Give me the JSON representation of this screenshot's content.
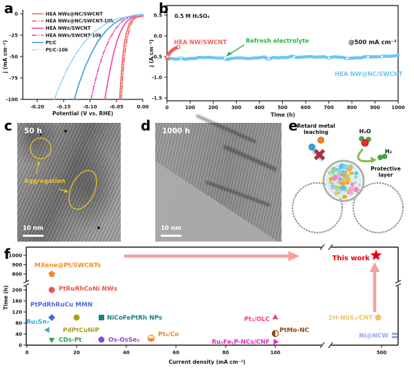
{
  "figure_title": "HEA NWs@NC/SWCNT HER stability figure",
  "panels": {
    "a": "a",
    "b": "b",
    "c": "c",
    "d": "d",
    "e": "e",
    "f": "f"
  },
  "colors": {
    "red": "#F2605C",
    "pink": "#F049A5",
    "blue": "#3FA0DC",
    "light_blue": "#93D2F4",
    "cyan_trace": "#6EC6F2",
    "green_annot": "#2DB34A",
    "arrow_pink": "#F5A09E",
    "star_red": "#E8000B",
    "yellow_annot": "#E6C229",
    "axis": "#1a1a1a"
  },
  "panel_c": {
    "time_label": "50 h",
    "annotation": "Aggregation",
    "scale_bar": "10 nm"
  },
  "panel_d": {
    "time_label": "1000 h",
    "scale_bar": "10 nm"
  },
  "panel_e": {
    "retard": "Retard metal leaching",
    "h2o": "H₂O",
    "h2": "H₂",
    "protective": "Protective layer",
    "particle_palette": [
      "#F4A7D3",
      "#45C8F0",
      "#F5C832",
      "#8FD98F",
      "#F5A623",
      "#BDE26B",
      "#F781C0",
      "#7FD4E8"
    ]
  },
  "chart_data": [
    {
      "id": "a",
      "type": "line",
      "xlabel": "Potential (V vs. RHE)",
      "ylabel": "j (mA cm⁻²)",
      "xlim": [
        -0.235,
        0.0
      ],
      "ylim": [
        -100,
        2
      ],
      "xticks": [
        -0.2,
        -0.15,
        -0.1,
        -0.05,
        0.0
      ],
      "xtick_labels": [
        "-0.20",
        "-0.15",
        "-0.10",
        "-0.05",
        "0.00"
      ],
      "yticks": [
        0,
        -25,
        -50,
        -75,
        -100
      ],
      "legend_position": "upper-left",
      "series": [
        {
          "name": "HEA NWs@NC/SWCNT",
          "color": "#F2605C",
          "dash": null,
          "points": [
            [
              -0.044,
              -100
            ],
            [
              -0.042,
              -82
            ],
            [
              -0.04,
              -65
            ],
            [
              -0.038,
              -50
            ],
            [
              -0.035,
              -35
            ],
            [
              -0.031,
              -22
            ],
            [
              -0.026,
              -12
            ],
            [
              -0.02,
              -6
            ],
            [
              -0.012,
              -3
            ],
            [
              0,
              -2
            ]
          ]
        },
        {
          "name": "HEA NWs@NC/SWCNT-10k",
          "color": "#F2605C",
          "dash": "7 2.5 1.5 2.5",
          "points": [
            [
              -0.041,
              -100
            ],
            [
              -0.039,
              -82
            ],
            [
              -0.037,
              -64
            ],
            [
              -0.034,
              -46
            ],
            [
              -0.03,
              -30
            ],
            [
              -0.025,
              -16
            ],
            [
              -0.019,
              -8
            ],
            [
              -0.012,
              -4
            ],
            [
              0,
              -3
            ]
          ]
        },
        {
          "name": "HEA NWs/SWCNT",
          "color": "#F049A5",
          "dash": null,
          "points": [
            [
              -0.072,
              -100
            ],
            [
              -0.067,
              -82
            ],
            [
              -0.061,
              -62
            ],
            [
              -0.055,
              -45
            ],
            [
              -0.048,
              -30
            ],
            [
              -0.04,
              -18
            ],
            [
              -0.031,
              -9
            ],
            [
              -0.02,
              -4
            ],
            [
              -0.008,
              -2
            ],
            [
              0,
              -1.5
            ]
          ]
        },
        {
          "name": "HEA NWs/SWCNT-10k",
          "color": "#F049A5",
          "dash": "7 2.5 1.5 2.5",
          "points": [
            [
              -0.098,
              -100
            ],
            [
              -0.091,
              -80
            ],
            [
              -0.083,
              -62
            ],
            [
              -0.074,
              -45
            ],
            [
              -0.063,
              -29
            ],
            [
              -0.051,
              -17
            ],
            [
              -0.038,
              -8
            ],
            [
              -0.024,
              -3.5
            ],
            [
              -0.01,
              -2
            ],
            [
              0,
              -1.5
            ]
          ]
        },
        {
          "name": "Pt/C",
          "color": "#3FA0DC",
          "dash": null,
          "points": [
            [
              -0.13,
              -100
            ],
            [
              -0.121,
              -82
            ],
            [
              -0.11,
              -63
            ],
            [
              -0.098,
              -47
            ],
            [
              -0.085,
              -32
            ],
            [
              -0.07,
              -20
            ],
            [
              -0.054,
              -11
            ],
            [
              -0.037,
              -5
            ],
            [
              -0.018,
              -2
            ],
            [
              0,
              -1
            ]
          ]
        },
        {
          "name": "Pt/C-10k",
          "color": "#93D2F4",
          "dash": "6 2 1.5 2 1.5 2",
          "points": [
            [
              -0.168,
              -100
            ],
            [
              -0.156,
              -82
            ],
            [
              -0.143,
              -64
            ],
            [
              -0.128,
              -48
            ],
            [
              -0.111,
              -33
            ],
            [
              -0.092,
              -21
            ],
            [
              -0.071,
              -12
            ],
            [
              -0.049,
              -6
            ],
            [
              -0.026,
              -3
            ],
            [
              0,
              -1.5
            ]
          ]
        }
      ]
    },
    {
      "id": "b",
      "type": "line",
      "xlabel": "Time (h)",
      "ylabel": "j (A cm⁻²)",
      "xlim": [
        0,
        1000
      ],
      "ylim": [
        -1.5,
        0.5
      ],
      "xticks": [
        0,
        100,
        200,
        300,
        400,
        500,
        600,
        700,
        800,
        900,
        1000
      ],
      "yticks": [
        0.5,
        0.0,
        -0.5,
        -1.0,
        -1.5
      ],
      "ytick_labels": [
        "0.5",
        "0.0",
        "-0.5",
        "-1.0",
        "-1.5"
      ],
      "annotations": {
        "electrolyte": "0.5 M H₂SO₄",
        "current_density": "@500 mA cm⁻²",
        "red_label": "HEA NW/SWCNT",
        "cyan_label": "HEA NW@NC/SWCNT",
        "refresh": "Refresh electrolyte",
        "refresh_arrow_target_t": 255
      },
      "series": [
        {
          "name": "HEA NW/SWCNT",
          "color": "#F2605C",
          "width": 5,
          "points": [
            [
              0,
              -0.56
            ],
            [
              3,
              -0.5
            ],
            [
              6,
              -0.46
            ],
            [
              10,
              -0.42
            ],
            [
              16,
              -0.38
            ],
            [
              24,
              -0.34
            ],
            [
              32,
              -0.31
            ],
            [
              42,
              -0.285
            ],
            [
              50,
              -0.27
            ]
          ],
          "marker_t": [
            2,
            50
          ]
        },
        {
          "name": "HEA NW@NC/SWCNT",
          "color": "#6EC6F2",
          "width": 4.5,
          "t_step": 20,
          "values": [
            -0.56,
            -0.545,
            -0.55,
            -0.53,
            -0.555,
            -0.54,
            -0.545,
            -0.53,
            -0.54,
            -0.525,
            -0.535,
            -0.52,
            -0.525,
            -0.565,
            -0.55,
            -0.54,
            -0.545,
            -0.53,
            -0.535,
            -0.52,
            -0.53,
            -0.515,
            -0.55,
            -0.535,
            -0.52,
            -0.505,
            -0.515,
            -0.5,
            -0.525,
            -0.51,
            -0.52,
            -0.505,
            -0.515,
            -0.5,
            -0.51,
            -0.535,
            -0.52,
            -0.51,
            -0.515,
            -0.545,
            -0.53,
            -0.515,
            -0.52,
            -0.505,
            -0.495,
            -0.505,
            -0.49,
            -0.5,
            -0.485,
            -0.495,
            -0.48
          ],
          "marker_t": [
            60,
            250,
            440,
            550,
            700,
            780,
            870,
            930
          ]
        }
      ]
    },
    {
      "id": "f",
      "type": "scatter",
      "xlabel": "Current density (mA cm⁻²)",
      "ylabel": "Time (h)",
      "x_axis_break": [
        130,
        480
      ],
      "y_axis_break": [
        210,
        790
      ],
      "xticks_low": [
        0,
        20,
        40,
        60,
        80,
        100
      ],
      "xtick_high": 500,
      "yticks_low": [
        0,
        40,
        80,
        120,
        160,
        200
      ],
      "yticks_high": [
        800,
        900,
        1000
      ],
      "points": [
        {
          "name": "MXene@Pt/SWCNTs",
          "cd": 10,
          "time": 800,
          "marker": "pentagon",
          "color": "#F28C1E"
        },
        {
          "name": "PtRuRhCoNi NWs",
          "cd": 10,
          "time": 200,
          "marker": "circle",
          "color": "#E9534E"
        },
        {
          "name": "PtPdRhRuCu MMN",
          "cd": 10,
          "time": 100,
          "marker": "diamond",
          "color": "#4A68E0"
        },
        {
          "name": "Ru₃Sn₇",
          "cd": 10,
          "time": 55,
          "marker": "triangle-left",
          "color": "#29ABE2"
        },
        {
          "name": "CDs-Pt",
          "cd": 10,
          "time": 20,
          "marker": "triangle-down",
          "color": "#2E9E50"
        },
        {
          "name": "PdPtCuNiP",
          "cd": 20,
          "time": 100,
          "marker": "circle",
          "color": "#A9A118"
        },
        {
          "name": "NiCoFePtRh NPs",
          "cd": 30,
          "time": 100,
          "marker": "square",
          "color": "#17847C"
        },
        {
          "name": "Os-OsSe₂",
          "cd": 30,
          "time": 20,
          "marker": "pentagon",
          "color": "#8E44CC"
        },
        {
          "name": "Pt₄/Co",
          "cd": 50,
          "time": 25,
          "marker": "circle-half-bottom",
          "color": "#F2851C"
        },
        {
          "name": "Pt₁/OLC",
          "cd": 100,
          "time": 100,
          "marker": "triangle-up",
          "color": "#F23C94"
        },
        {
          "name": "PtMo-NC",
          "cd": 100,
          "time": 42,
          "marker": "circle-half-left",
          "color": "#8C4A10"
        },
        {
          "name": "RuₓFeᵧP-NCs/CNF",
          "cd": 100,
          "time": 12,
          "marker": "triangle-right",
          "color": "#EE22C8"
        },
        {
          "name": "2H-NbS₂/CNT",
          "cd": 500,
          "time": 100,
          "marker": "pentagon",
          "color": "#EFC568"
        },
        {
          "name": "Ni@NCW",
          "cd": 500,
          "time": 35,
          "marker": "square-striped",
          "color": "#93A3F2"
        },
        {
          "name": "This work",
          "cd": 500,
          "time": 1000,
          "marker": "star",
          "color": "#E8000B"
        }
      ]
    }
  ]
}
